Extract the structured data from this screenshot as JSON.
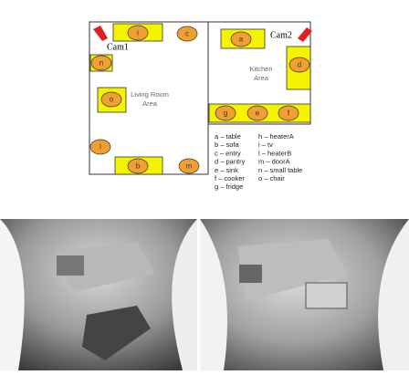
{
  "plan": {
    "cameras": [
      "Cam1",
      "Cam2"
    ],
    "areas": [
      {
        "lines": [
          "Living Room",
          "Area"
        ]
      },
      {
        "lines": [
          "Kitchen",
          "Area"
        ]
      }
    ],
    "items": [
      "i",
      "c",
      "n",
      "o",
      "l",
      "b",
      "m",
      "a",
      "d",
      "g",
      "e",
      "f"
    ]
  },
  "legend": {
    "left": [
      "a – table",
      "b – sofa",
      "c – entry",
      "d – pantry",
      "e – sink",
      "f – cooker",
      "g – fridge"
    ],
    "right": [
      "h – heaterA",
      "i – tv",
      "l – heaterB",
      "m – doorA",
      "n – small table",
      "o – chair"
    ]
  }
}
